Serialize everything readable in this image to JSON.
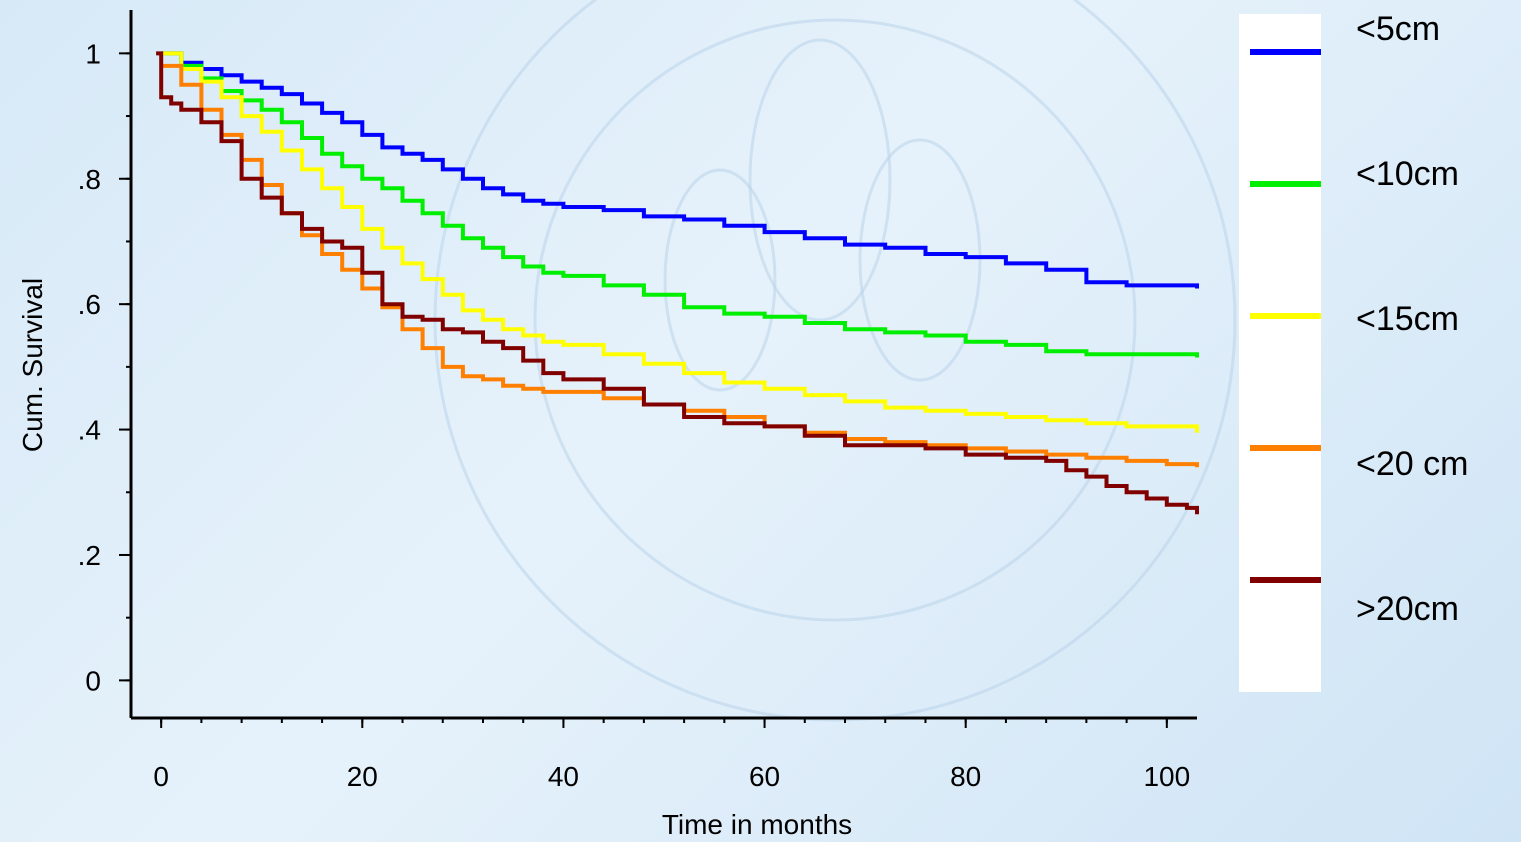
{
  "chart_data": {
    "type": "line",
    "step": true,
    "xlabel": "Time in months",
    "ylabel": "Cum. Survival",
    "xlim": [
      -3,
      103
    ],
    "ylim": [
      -0.06,
      1.05
    ],
    "xticks": [
      0,
      20,
      40,
      60,
      80,
      100
    ],
    "xtick_labels": [
      "0",
      "20",
      "40",
      "60",
      "80",
      "100"
    ],
    "xminor_step": 4,
    "yticks": [
      0,
      0.2,
      0.4,
      0.6,
      0.8,
      1
    ],
    "ytick_labels": [
      "0",
      ".2",
      ".4",
      ".6",
      ".8",
      "1"
    ],
    "yminor_step": 0.1,
    "grid": false,
    "legend_position": "right",
    "series": [
      {
        "name": "<5cm",
        "color": "#0000FF",
        "x": [
          0,
          2,
          4,
          6,
          8,
          10,
          12,
          14,
          16,
          18,
          20,
          22,
          24,
          26,
          28,
          30,
          32,
          34,
          36,
          38,
          40,
          44,
          48,
          52,
          56,
          60,
          64,
          68,
          72,
          76,
          80,
          84,
          88,
          92,
          96,
          100,
          103
        ],
        "y": [
          1.0,
          0.985,
          0.975,
          0.965,
          0.955,
          0.945,
          0.935,
          0.92,
          0.905,
          0.89,
          0.87,
          0.85,
          0.84,
          0.83,
          0.815,
          0.8,
          0.785,
          0.775,
          0.765,
          0.76,
          0.755,
          0.75,
          0.74,
          0.735,
          0.725,
          0.715,
          0.705,
          0.695,
          0.69,
          0.68,
          0.675,
          0.665,
          0.655,
          0.635,
          0.63,
          0.63,
          0.625
        ]
      },
      {
        "name": "<10cm",
        "color": "#00EE00",
        "x": [
          0,
          2,
          4,
          6,
          8,
          10,
          12,
          14,
          16,
          18,
          20,
          22,
          24,
          26,
          28,
          30,
          32,
          34,
          36,
          38,
          40,
          44,
          48,
          52,
          56,
          60,
          64,
          68,
          72,
          76,
          80,
          84,
          88,
          92,
          96,
          100,
          103
        ],
        "y": [
          1.0,
          0.98,
          0.96,
          0.94,
          0.925,
          0.91,
          0.89,
          0.865,
          0.84,
          0.82,
          0.8,
          0.785,
          0.765,
          0.745,
          0.725,
          0.705,
          0.69,
          0.675,
          0.66,
          0.65,
          0.645,
          0.63,
          0.615,
          0.595,
          0.585,
          0.58,
          0.57,
          0.56,
          0.555,
          0.55,
          0.54,
          0.535,
          0.525,
          0.52,
          0.52,
          0.52,
          0.515
        ]
      },
      {
        "name": "<15cm",
        "color": "#FFFF00",
        "x": [
          0,
          2,
          4,
          6,
          8,
          10,
          12,
          14,
          16,
          18,
          20,
          22,
          24,
          26,
          28,
          30,
          32,
          34,
          36,
          38,
          40,
          44,
          48,
          52,
          56,
          60,
          64,
          68,
          72,
          76,
          80,
          84,
          88,
          92,
          96,
          100,
          103
        ],
        "y": [
          1.0,
          0.975,
          0.955,
          0.93,
          0.9,
          0.875,
          0.845,
          0.815,
          0.785,
          0.755,
          0.72,
          0.69,
          0.665,
          0.64,
          0.615,
          0.59,
          0.575,
          0.56,
          0.55,
          0.54,
          0.535,
          0.52,
          0.505,
          0.49,
          0.475,
          0.465,
          0.455,
          0.445,
          0.435,
          0.43,
          0.425,
          0.42,
          0.415,
          0.41,
          0.405,
          0.405,
          0.395
        ]
      },
      {
        "name": "<20 cm",
        "color": "#FF8000",
        "x": [
          0,
          2,
          4,
          6,
          8,
          10,
          12,
          14,
          16,
          18,
          20,
          22,
          24,
          26,
          28,
          30,
          32,
          34,
          36,
          38,
          40,
          44,
          48,
          52,
          56,
          60,
          64,
          68,
          72,
          76,
          80,
          84,
          88,
          92,
          96,
          100,
          103
        ],
        "y": [
          0.98,
          0.95,
          0.91,
          0.87,
          0.83,
          0.79,
          0.745,
          0.71,
          0.68,
          0.655,
          0.625,
          0.595,
          0.56,
          0.53,
          0.5,
          0.485,
          0.48,
          0.47,
          0.465,
          0.46,
          0.46,
          0.45,
          0.44,
          0.43,
          0.42,
          0.405,
          0.395,
          0.385,
          0.38,
          0.375,
          0.37,
          0.365,
          0.36,
          0.355,
          0.35,
          0.345,
          0.34
        ]
      },
      {
        "name": ">20cm",
        "color": "#800000",
        "x": [
          -0.5,
          0,
          1,
          2,
          4,
          6,
          8,
          10,
          12,
          14,
          16,
          18,
          20,
          22,
          24,
          26,
          28,
          30,
          32,
          34,
          36,
          38,
          40,
          44,
          48,
          52,
          56,
          60,
          64,
          68,
          72,
          76,
          80,
          84,
          88,
          90,
          92,
          94,
          96,
          98,
          100,
          102,
          103
        ],
        "y": [
          1.0,
          0.93,
          0.92,
          0.91,
          0.89,
          0.86,
          0.8,
          0.77,
          0.745,
          0.72,
          0.7,
          0.69,
          0.65,
          0.6,
          0.58,
          0.575,
          0.56,
          0.555,
          0.54,
          0.53,
          0.51,
          0.49,
          0.48,
          0.465,
          0.44,
          0.42,
          0.41,
          0.405,
          0.39,
          0.375,
          0.375,
          0.37,
          0.36,
          0.355,
          0.35,
          0.335,
          0.325,
          0.31,
          0.3,
          0.29,
          0.28,
          0.275,
          0.265
        ]
      }
    ]
  }
}
